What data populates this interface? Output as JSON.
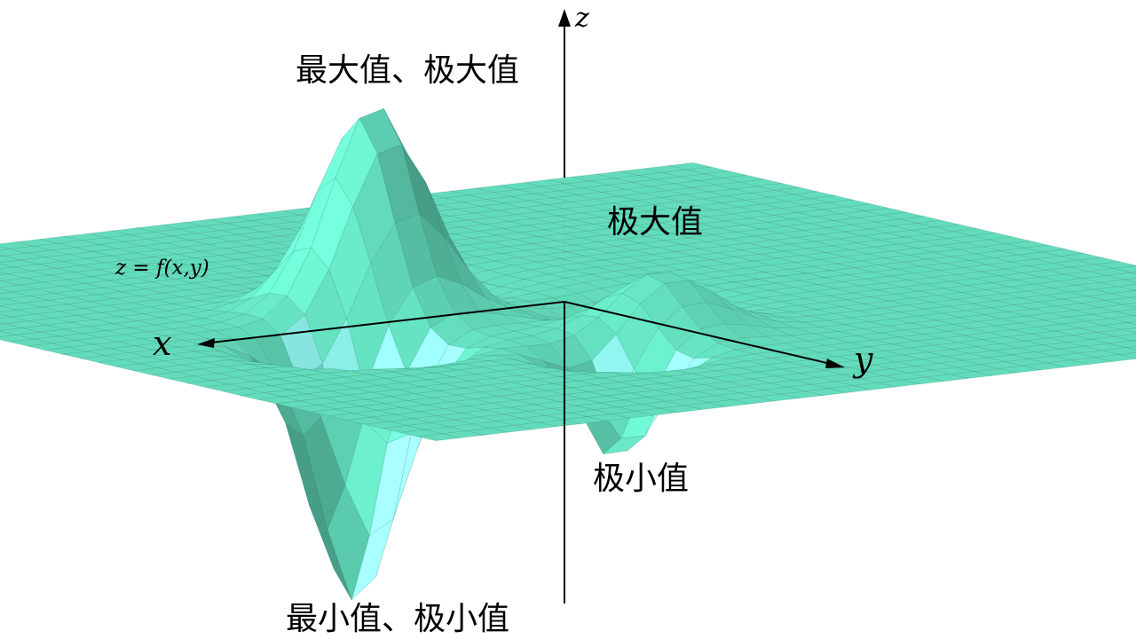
{
  "surface": {
    "formula": "z = f(x,y)",
    "fill_color": "#63dcbc",
    "edge_color": "#2f7f6a",
    "under_color": "#8ff5ee"
  },
  "axes": {
    "x_label": "x",
    "y_label": "y",
    "z_label": "z"
  },
  "annotations": {
    "global_max": "最大值、极大值",
    "local_max": "极大值",
    "local_min": "极小值",
    "global_min": "最小值、极小值"
  }
}
